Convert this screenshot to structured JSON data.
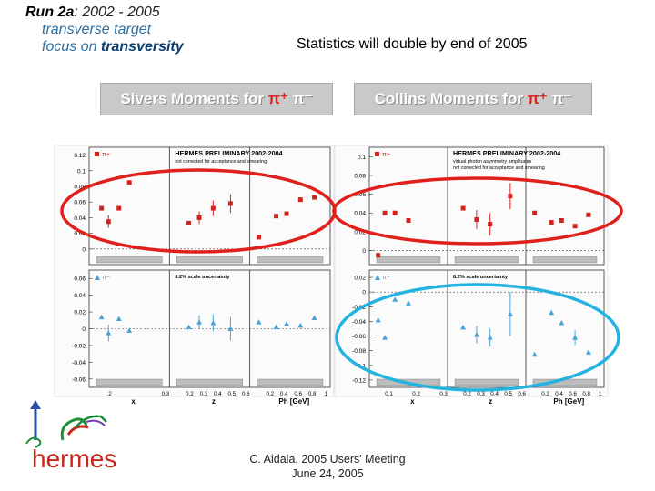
{
  "header": {
    "run_label": "Run 2a",
    "run_years": ": 2002 - 2005",
    "line2": "transverse target",
    "line3_prefix": "focus on ",
    "line3_bold": "transversity"
  },
  "stat_note": "Statistics will double by end of 2005",
  "banners": {
    "sivers": {
      "prefix": "Sivers Moments for ",
      "pi_plus": "π⁺",
      "pi_minus": " π⁻"
    },
    "collins": {
      "prefix": "Collins Moments for ",
      "pi_plus": "π⁺",
      "pi_minus": " π⁻"
    }
  },
  "footer": {
    "line1": "C. Aidala, 2005 Users' Meeting",
    "line2": "June 24, 2005"
  },
  "logo": {
    "text": "hermes"
  },
  "colors": {
    "pi_plus": "#d4231b",
    "pi_minus": "#4aa3d8",
    "highlight_red": "#e0201a",
    "highlight_cyan": "#22b3e0",
    "band": "#bdbdbd"
  },
  "chart_data": [
    {
      "type": "scatter",
      "id": "sivers",
      "title": "HERMES PRELIMINARY 2002-2004",
      "notes": [
        "not corrected for acceptance and smearing"
      ],
      "scale_note": "8.2% scale uncertainty",
      "x_groups": [
        {
          "label": "x",
          "ticks": [
            ".2",
            "0.3"
          ]
        },
        {
          "label": "z",
          "ticks": [
            "0.2",
            "0.3",
            "0.4",
            "0.5",
            "0.6"
          ]
        },
        {
          "label": "Ph  [GeV]",
          "ticks": [
            "0.2",
            "0.4",
            "0.6",
            "0.8",
            "1"
          ]
        }
      ],
      "panels": [
        {
          "series": "π+",
          "ylim": [
            -0.02,
            0.13
          ],
          "yticks": [
            "0.12",
            "0.1",
            "0.08",
            "0.06",
            "0.04",
            "0.02",
            "0"
          ],
          "groups": [
            {
              "points": [
                [
                  0.1,
                  0.052,
                  0
                ],
                [
                  0.2,
                  0.035,
                  0.008
                ],
                [
                  0.35,
                  0.052,
                  0
                ],
                [
                  0.5,
                  0.085,
                  0
                ]
              ]
            },
            {
              "points": [
                [
                  0.2,
                  0.033,
                  0
                ],
                [
                  0.35,
                  0.04,
                  0.008
                ],
                [
                  0.55,
                  0.052,
                  0.01
                ],
                [
                  0.8,
                  0.058,
                  0.012
                ]
              ]
            },
            {
              "points": [
                [
                  0.05,
                  0.015,
                  0
                ],
                [
                  0.3,
                  0.042,
                  0
                ],
                [
                  0.45,
                  0.045,
                  0
                ],
                [
                  0.65,
                  0.063,
                  0
                ],
                [
                  0.85,
                  0.066,
                  0
                ]
              ]
            }
          ]
        },
        {
          "series": "π−",
          "ylim": [
            -0.07,
            0.07
          ],
          "yticks": [
            "0.06",
            "0.04",
            "0.02",
            "0",
            "-0.02",
            "-0.04",
            "-0.06"
          ],
          "groups": [
            {
              "points": [
                [
                  0.1,
                  0.014,
                  0
                ],
                [
                  0.2,
                  -0.005,
                  0.01
                ],
                [
                  0.35,
                  0.012,
                  0
                ],
                [
                  0.5,
                  -0.002,
                  0
                ]
              ]
            },
            {
              "points": [
                [
                  0.2,
                  0.002,
                  0
                ],
                [
                  0.35,
                  0.008,
                  0.008
                ],
                [
                  0.55,
                  0.007,
                  0.01
                ],
                [
                  0.8,
                  0.0,
                  0.014
                ]
              ]
            },
            {
              "points": [
                [
                  0.05,
                  0.008,
                  0
                ],
                [
                  0.3,
                  0.002,
                  0
                ],
                [
                  0.45,
                  0.006,
                  0
                ],
                [
                  0.65,
                  0.004,
                  0
                ],
                [
                  0.85,
                  0.013,
                  0
                ]
              ]
            }
          ]
        }
      ]
    },
    {
      "type": "scatter",
      "id": "collins",
      "title": "HERMES PRELIMINARY 2002-2004",
      "notes": [
        "virtual photon asymmetry amplitudes",
        "not corrected for acceptance and smearing"
      ],
      "scale_note": "8.2% scale uncertainty",
      "x_groups": [
        {
          "label": "x",
          "ticks": [
            "0.1",
            "0.2",
            "0.3"
          ]
        },
        {
          "label": "z",
          "ticks": [
            "0.2",
            "0.3",
            "0.4",
            "0.5",
            "0.6"
          ]
        },
        {
          "label": "Ph  [GeV]",
          "ticks": [
            "0.2",
            "0.4",
            "0.6",
            "0.8",
            "1"
          ]
        }
      ],
      "panels": [
        {
          "series": "π+",
          "ylim": [
            -0.015,
            0.11
          ],
          "yticks": [
            "0.1",
            "0.08",
            "0.06",
            "0.04",
            "0.02",
            "0"
          ],
          "groups": [
            {
              "points": [
                [
                  0.05,
                  -0.005,
                  0
                ],
                [
                  0.15,
                  0.04,
                  0
                ],
                [
                  0.3,
                  0.04,
                  0
                ],
                [
                  0.5,
                  0.032,
                  0
                ]
              ]
            },
            {
              "points": [
                [
                  0.15,
                  0.045,
                  0
                ],
                [
                  0.35,
                  0.033,
                  0.01
                ],
                [
                  0.55,
                  0.028,
                  0.012
                ],
                [
                  0.85,
                  0.058,
                  0.014
                ]
              ]
            },
            {
              "points": [
                [
                  0.05,
                  0.04,
                  0
                ],
                [
                  0.3,
                  0.03,
                  0
                ],
                [
                  0.45,
                  0.032,
                  0
                ],
                [
                  0.65,
                  0.026,
                  0
                ],
                [
                  0.85,
                  0.038,
                  0
                ]
              ]
            }
          ]
        },
        {
          "series": "π−",
          "ylim": [
            -0.13,
            0.03
          ],
          "yticks": [
            "0.02",
            "0",
            "-0.02",
            "-0.04",
            "-0.06",
            "-0.08",
            "-0.1",
            "-0.12"
          ],
          "groups": [
            {
              "points": [
                [
                  0.05,
                  -0.038,
                  0
                ],
                [
                  0.15,
                  -0.062,
                  0
                ],
                [
                  0.3,
                  -0.01,
                  0
                ],
                [
                  0.5,
                  -0.015,
                  0
                ]
              ]
            },
            {
              "points": [
                [
                  0.15,
                  -0.048,
                  0
                ],
                [
                  0.35,
                  -0.058,
                  0.012
                ],
                [
                  0.55,
                  -0.062,
                  0.012
                ],
                [
                  0.85,
                  -0.03,
                  0.03
                ]
              ]
            },
            {
              "points": [
                [
                  0.05,
                  -0.085,
                  0
                ],
                [
                  0.3,
                  -0.028,
                  0
                ],
                [
                  0.45,
                  -0.042,
                  0
                ],
                [
                  0.65,
                  -0.062,
                  0.01
                ],
                [
                  0.85,
                  -0.082,
                  0
                ]
              ]
            }
          ]
        }
      ]
    }
  ]
}
